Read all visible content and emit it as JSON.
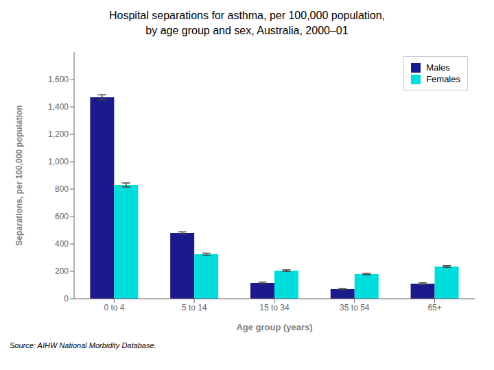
{
  "chart_data": {
    "type": "bar",
    "title": "Hospital separations for asthma, per 100,000 population,",
    "subtitle": "by age group and sex, Australia, 2000–01",
    "xlabel": "Age group (years)",
    "ylabel": "Separations, per 100,000 population",
    "categories": [
      "0 to 4",
      "5 to 14",
      "15 to 34",
      "35 to 54",
      "65+"
    ],
    "series": [
      {
        "name": "Males",
        "color": "#1A1A8C",
        "values": [
          1470,
          480,
          115,
          70,
          110
        ],
        "errors": [
          18,
          8,
          6,
          5,
          6
        ]
      },
      {
        "name": "Females",
        "color": "#00DDDD",
        "values": [
          830,
          325,
          205,
          180,
          235
        ],
        "errors": [
          15,
          8,
          6,
          5,
          6
        ]
      }
    ],
    "ylim": [
      0,
      1800
    ],
    "yticks": [
      0,
      200,
      400,
      600,
      800,
      {
        "value": 1000,
        "label": "1,000"
      },
      {
        "value": 1200,
        "label": "1,200"
      },
      {
        "value": 1400,
        "label": "1,400"
      },
      {
        "value": 1600,
        "label": "1,600"
      }
    ],
    "grid": false,
    "legend": "upper right",
    "annotations": [
      "Source: AIHW National Morbidity Database."
    ]
  }
}
